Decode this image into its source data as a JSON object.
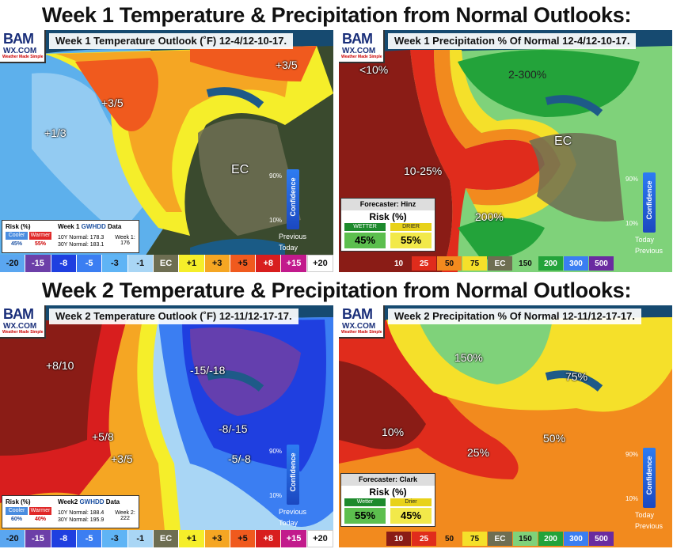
{
  "headlines": {
    "week1": "Week 1 Temperature & Precipitation from Normal Outlooks:",
    "week2": "Week 2 Temperature & Precipitation from Normal Outlooks:"
  },
  "logo": {
    "line1": "BAM",
    "line2": "WX.COM",
    "line3": "Weather Made Simple"
  },
  "panels": {
    "w1_temp": {
      "title": "Week 1 Temperature Outlook (˚F) 12-4/12-10-17.",
      "labels": {
        "a": "+3/5",
        "b": "+3/5",
        "c": "+1/3",
        "d": "EC"
      },
      "risk": {
        "heading": "Risk (%)",
        "cooler": "Cooler",
        "warmer": "Warmer",
        "cooler_val": "45%",
        "warmer_val": "55%",
        "data_heading_pre": "Week 1",
        "data_heading_em": "GWHDD",
        "data_heading_post": "Data",
        "normal10": "10Y Normal: 178.3",
        "normal30": "30Y Normal: 183.1",
        "week_label": "Week 1:",
        "week_val": "176"
      },
      "confidence": {
        "label": "Confidence",
        "p90": "90%",
        "p10": "10%",
        "previous": "Previous",
        "today": "Today"
      }
    },
    "w1_precip": {
      "title": "Week 1 Precipitation % Of Normal 12-4/12-10-17.",
      "labels": {
        "a": "<10%",
        "b": "2-300%",
        "c": "EC",
        "d": "10-25%",
        "e": "200%"
      },
      "forecaster": {
        "name": "Forecaster: Hinz",
        "risk": "Risk (%)",
        "wetter": "WETTER",
        "drier": "DRIER",
        "wetter_val": "45%",
        "drier_val": "55%"
      },
      "confidence": {
        "label": "Confidence",
        "p90": "90%",
        "p10": "10%",
        "today": "Today",
        "previous": "Previous"
      }
    },
    "w2_temp": {
      "title": "Week 2 Temperature Outlook (˚F) 12-11/12-17-17.",
      "labels": {
        "a": "+8/10",
        "b": "+5/8",
        "c": "+3/5",
        "d": "-15/-18",
        "e": "-8/-15",
        "f": "-5/-8"
      },
      "risk": {
        "heading": "Risk (%)",
        "cooler": "Cooler",
        "warmer": "Warmer",
        "cooler_val": "60%",
        "warmer_val": "40%",
        "data_heading_pre": "Week2",
        "data_heading_em": "GWHDD",
        "data_heading_post": "Data",
        "normal10": "10Y Normal: 188.4",
        "normal30": "30Y Normal: 195.9",
        "week_label": "Week 2:",
        "week_val": "222"
      },
      "confidence": {
        "label": "Confidence",
        "p90": "90%",
        "p10": "10%",
        "previous": "Previous",
        "today": "Today"
      }
    },
    "w2_precip": {
      "title": "Week 2 Precipitation % Of Normal 12-11/12-17-17.",
      "labels": {
        "a": "150%",
        "b": "75%",
        "c": "10%",
        "d": "25%",
        "e": "50%"
      },
      "forecaster": {
        "name": "Forecaster: Clark",
        "risk": "Risk (%)",
        "wetter": "Wetter",
        "drier": "Drier",
        "wetter_val": "55%",
        "drier_val": "45%"
      },
      "confidence": {
        "label": "Confidence",
        "p90": "90%",
        "p10": "10%",
        "today": "Today",
        "previous": "Previous"
      }
    }
  },
  "temp_legend": [
    {
      "label": "-20",
      "color": "#5aa6f0"
    },
    {
      "label": "-15",
      "color": "#6c3fa8"
    },
    {
      "label": "-8",
      "color": "#1f3fe0"
    },
    {
      "label": "-5",
      "color": "#3b7ef2"
    },
    {
      "label": "-3",
      "color": "#5fb4f5"
    },
    {
      "label": "-1",
      "color": "#a9d6f5"
    },
    {
      "label": "EC",
      "color": "#6e6e52"
    },
    {
      "label": "+1",
      "color": "#f5ee2a"
    },
    {
      "label": "+3",
      "color": "#f5a623"
    },
    {
      "label": "+5",
      "color": "#f05a1e"
    },
    {
      "label": "+8",
      "color": "#d81e1e"
    },
    {
      "label": "+15",
      "color": "#c21a8c"
    },
    {
      "label": "+20",
      "color": "#ffffff"
    }
  ],
  "precip_legend": [
    {
      "label": "10",
      "color": "#8a1c16"
    },
    {
      "label": "25",
      "color": "#e02c1c"
    },
    {
      "label": "50",
      "color": "#f28a1e"
    },
    {
      "label": "75",
      "color": "#f5e02a"
    },
    {
      "label": "EC",
      "color": "#6e6e52"
    },
    {
      "label": "150",
      "color": "#7fd27a"
    },
    {
      "label": "200",
      "color": "#23a33a"
    },
    {
      "label": "300",
      "color": "#3a7ef2"
    },
    {
      "label": "500",
      "color": "#6a2ba0"
    }
  ]
}
